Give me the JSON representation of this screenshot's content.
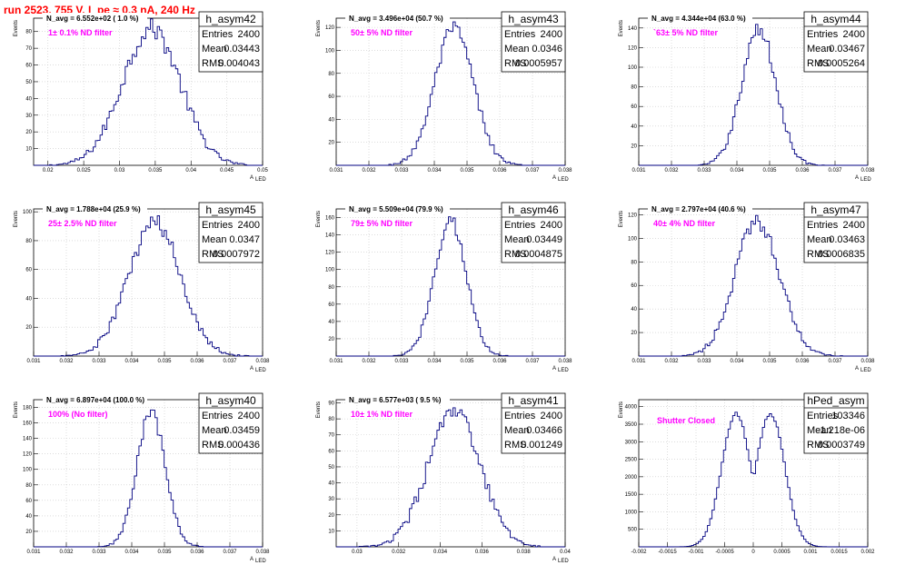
{
  "header": {
    "title": "run 2523,   755 V, I_pe ≈ 0.3 nA, 240 Hz"
  },
  "colors": {
    "hist": "#000080",
    "grid": "#c8c8c8",
    "note": "#ff00ff",
    "title": "#ff0000"
  },
  "chart_data": [
    {
      "type": "histogram",
      "name": "h_asym42",
      "entries": "2400",
      "mean": "0.03443",
      "rms": "0.004043",
      "navg": "N_avg = 6.552e+02 ( 1.0 %)",
      "note": "1± 0.1% ND filter",
      "xlim": [
        0.018,
        0.05
      ],
      "ylim": [
        0,
        88
      ],
      "mu": 0.03443,
      "sigma": 0.004043,
      "peak": 82,
      "bimodal": false,
      "xticks": [
        "0.02",
        "0.025",
        "0.03",
        "0.035",
        "0.04",
        "0.045",
        "0.05"
      ],
      "xtickvals": [
        0.02,
        0.025,
        0.03,
        0.035,
        0.04,
        0.045,
        0.05
      ],
      "yticks": [
        "10",
        "20",
        "30",
        "40",
        "50",
        "60",
        "70",
        "80"
      ],
      "ytickvals": [
        10,
        20,
        30,
        40,
        50,
        60,
        70,
        80
      ],
      "xlabel": "A",
      "xlabel_sub": "LED",
      "ylabel": "Events"
    },
    {
      "type": "histogram",
      "name": "h_asym43",
      "entries": "2400",
      "mean": "0.0346",
      "rms": "0.0005957",
      "navg": "N_avg = 3.496e+04 (50.7 %)",
      "note": "50± 5% ND filter",
      "xlim": [
        0.031,
        0.038
      ],
      "ylim": [
        0,
        128
      ],
      "mu": 0.0346,
      "sigma": 0.0005957,
      "peak": 118,
      "bimodal": false,
      "xticks": [
        "0.031",
        "0.032",
        "0.033",
        "0.034",
        "0.035",
        "0.036",
        "0.037",
        "0.038"
      ],
      "xtickvals": [
        0.031,
        0.032,
        0.033,
        0.034,
        0.035,
        0.036,
        0.037,
        0.038
      ],
      "yticks": [
        "20",
        "40",
        "60",
        "80",
        "100",
        "120"
      ],
      "ytickvals": [
        20,
        40,
        60,
        80,
        100,
        120
      ],
      "xlabel": "A",
      "xlabel_sub": "LED",
      "ylabel": "Events"
    },
    {
      "type": "histogram",
      "name": "h_asym44",
      "entries": "2400",
      "mean": "0.03467",
      "rms": "0.0005264",
      "navg": "N_avg = 4.344e+04 (63.0 %)",
      "note": "`63± 5% ND filter",
      "xlim": [
        0.031,
        0.038
      ],
      "ylim": [
        0,
        150
      ],
      "mu": 0.03467,
      "sigma": 0.0005264,
      "peak": 138,
      "bimodal": false,
      "xticks": [
        "0.031",
        "0.032",
        "0.033",
        "0.034",
        "0.035",
        "0.036",
        "0.037",
        "0.038"
      ],
      "xtickvals": [
        0.031,
        0.032,
        0.033,
        0.034,
        0.035,
        0.036,
        0.037,
        0.038
      ],
      "yticks": [
        "20",
        "40",
        "60",
        "80",
        "100",
        "120",
        "140"
      ],
      "ytickvals": [
        20,
        40,
        60,
        80,
        100,
        120,
        140
      ],
      "xlabel": "A",
      "xlabel_sub": "LED",
      "ylabel": "Events"
    },
    {
      "type": "histogram",
      "name": "h_asym45",
      "entries": "2400",
      "mean": "0.0347",
      "rms": "0.0007972",
      "navg": "N_avg = 1.788e+04 (25.9 %)",
      "note": "25± 2.5% ND filter",
      "xlim": [
        0.031,
        0.038
      ],
      "ylim": [
        0,
        102
      ],
      "mu": 0.0347,
      "sigma": 0.0007972,
      "peak": 92,
      "bimodal": false,
      "xticks": [
        "0.031",
        "0.032",
        "0.033",
        "0.034",
        "0.035",
        "0.036",
        "0.037",
        "0.038"
      ],
      "xtickvals": [
        0.031,
        0.032,
        0.033,
        0.034,
        0.035,
        0.036,
        0.037,
        0.038
      ],
      "yticks": [
        "20",
        "40",
        "60",
        "80",
        "100"
      ],
      "ytickvals": [
        20,
        40,
        60,
        80,
        100
      ],
      "xlabel": "A",
      "xlabel_sub": "LED",
      "ylabel": "Events"
    },
    {
      "type": "histogram",
      "name": "h_asym46",
      "entries": "2400",
      "mean": "0.03449",
      "rms": "0.0004875",
      "navg": "N_avg = 5.509e+04 (79.9 %)",
      "note": "79± 5% ND filter",
      "xlim": [
        0.031,
        0.038
      ],
      "ylim": [
        0,
        170
      ],
      "mu": 0.03449,
      "sigma": 0.0004875,
      "peak": 158,
      "bimodal": false,
      "xticks": [
        "0.031",
        "0.032",
        "0.033",
        "0.034",
        "0.035",
        "0.036",
        "0.037",
        "0.038"
      ],
      "xtickvals": [
        0.031,
        0.032,
        0.033,
        0.034,
        0.035,
        0.036,
        0.037,
        0.038
      ],
      "yticks": [
        "20",
        "40",
        "60",
        "80",
        "100",
        "120",
        "140",
        "160"
      ],
      "ytickvals": [
        20,
        40,
        60,
        80,
        100,
        120,
        140,
        160
      ],
      "xlabel": "A",
      "xlabel_sub": "LED",
      "ylabel": "Events"
    },
    {
      "type": "histogram",
      "name": "h_asym47",
      "entries": "2400",
      "mean": "0.03463",
      "rms": "0.0006835",
      "navg": "N_avg = 2.797e+04 (40.6 %)",
      "note": "40± 4% ND filter",
      "xlim": [
        0.031,
        0.038
      ],
      "ylim": [
        0,
        125
      ],
      "mu": 0.03463,
      "sigma": 0.0006835,
      "peak": 115,
      "bimodal": false,
      "xticks": [
        "0.031",
        "0.032",
        "0.033",
        "0.034",
        "0.035",
        "0.036",
        "0.037",
        "0.038"
      ],
      "xtickvals": [
        0.031,
        0.032,
        0.033,
        0.034,
        0.035,
        0.036,
        0.037,
        0.038
      ],
      "yticks": [
        "20",
        "40",
        "60",
        "80",
        "100",
        "120"
      ],
      "ytickvals": [
        20,
        40,
        60,
        80,
        100,
        120
      ],
      "xlabel": "A",
      "xlabel_sub": "LED",
      "ylabel": "Events"
    },
    {
      "type": "histogram",
      "name": "h_asym40",
      "entries": "2400",
      "mean": "0.03459",
      "rms": "0.000436",
      "navg": "N_avg = 6.897e+04 (100.0 %)",
      "note": "100% (No filter)",
      "xlim": [
        0.031,
        0.038
      ],
      "ylim": [
        0,
        190
      ],
      "mu": 0.03459,
      "sigma": 0.000436,
      "peak": 172,
      "bimodal": false,
      "xticks": [
        "0.031",
        "0.032",
        "0.033",
        "0.034",
        "0.035",
        "0.036",
        "0.037",
        "0.038"
      ],
      "xtickvals": [
        0.031,
        0.032,
        0.033,
        0.034,
        0.035,
        0.036,
        0.037,
        0.038
      ],
      "yticks": [
        "20",
        "40",
        "60",
        "80",
        "100",
        "120",
        "140",
        "160",
        "180"
      ],
      "ytickvals": [
        20,
        40,
        60,
        80,
        100,
        120,
        140,
        160,
        180
      ],
      "xlabel": "A",
      "xlabel_sub": "LED",
      "ylabel": "Events"
    },
    {
      "type": "histogram",
      "name": "h_asym41",
      "entries": "2400",
      "mean": "0.03466",
      "rms": "0.001249",
      "navg": "N_avg = 6.577e+03 ( 9.5 %)",
      "note": "10± 1% ND filter",
      "xlim": [
        0.029,
        0.04
      ],
      "ylim": [
        0,
        92
      ],
      "mu": 0.03466,
      "sigma": 0.001249,
      "peak": 84,
      "bimodal": false,
      "xticks": [
        "0.03",
        "0.032",
        "0.034",
        "0.036",
        "0.038",
        "0.04"
      ],
      "xtickvals": [
        0.03,
        0.032,
        0.034,
        0.036,
        0.038,
        0.04
      ],
      "yticks": [
        "10",
        "20",
        "30",
        "40",
        "50",
        "60",
        "70",
        "80",
        "90"
      ],
      "ytickvals": [
        10,
        20,
        30,
        40,
        50,
        60,
        70,
        80,
        90
      ],
      "xlabel": "A",
      "xlabel_sub": "LED",
      "ylabel": "Events"
    },
    {
      "type": "histogram",
      "name": "hPed_asym",
      "entries": "103346",
      "mean": "-1.218e-06",
      "rms": "0.0003749",
      "navg": "",
      "note": "Shutter Closed",
      "xlim": [
        -0.002,
        0.002
      ],
      "ylim": [
        0,
        4200
      ],
      "mu": 0.0,
      "sigma": 0.00025,
      "peak": 3950,
      "bimodal": true,
      "sep": 0.0003,
      "xticks": [
        "-0.002",
        "-0.0015",
        "-0.001",
        "-0.0005",
        "0",
        "0.0005",
        "0.001",
        "0.0015",
        "0.002"
      ],
      "xtickvals": [
        -0.002,
        -0.0015,
        -0.001,
        -0.0005,
        0,
        0.0005,
        0.001,
        0.0015,
        0.002
      ],
      "yticks": [
        "500",
        "1000",
        "1500",
        "2000",
        "2500",
        "3000",
        "3500",
        "4000"
      ],
      "ytickvals": [
        500,
        1000,
        1500,
        2000,
        2500,
        3000,
        3500,
        4000
      ],
      "xlabel": "",
      "xlabel_sub": "",
      "ylabel": "Events"
    }
  ]
}
